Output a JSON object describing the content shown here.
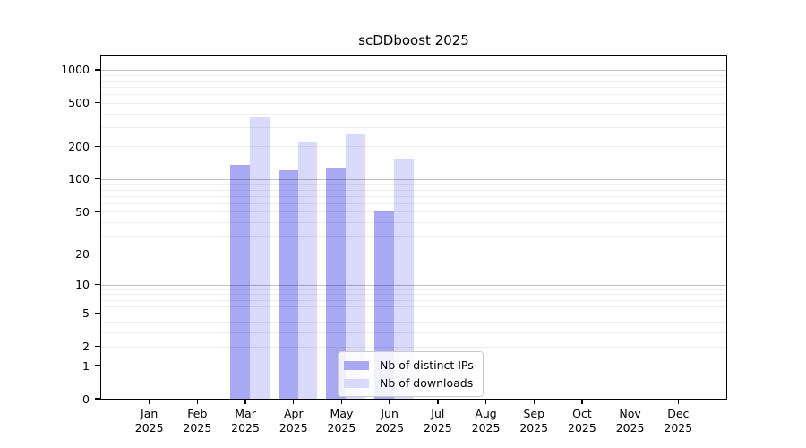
{
  "chart_data": {
    "type": "bar",
    "title": "scDDboost 2025",
    "categories": [
      "Jan 2025",
      "Feb 2025",
      "Mar 2025",
      "Apr 2025",
      "May 2025",
      "Jun 2025",
      "Jul 2025",
      "Aug 2025",
      "Sep 2025",
      "Oct 2025",
      "Nov 2025",
      "Dec 2025"
    ],
    "series": [
      {
        "name": "Nb of distinct IPs",
        "color": "#a8a8f4",
        "values": [
          134,
          120,
          127,
          51,
          0,
          0,
          0,
          0,
          0,
          0,
          0,
          0
        ]
      },
      {
        "name": "Nb of downloads",
        "color": "#d9d9fa",
        "values": [
          367,
          220,
          255,
          151,
          0,
          0,
          0,
          0,
          0,
          0,
          0,
          0
        ]
      }
    ],
    "xlabel": "",
    "ylabel": "",
    "yscale": "log1p",
    "ylim": [
      0,
      1350
    ],
    "yticks": [
      0,
      1,
      2,
      5,
      10,
      20,
      50,
      100,
      200,
      500,
      1000
    ],
    "grid": "on",
    "grid_major_at": [
      1,
      10,
      100,
      1000
    ],
    "legend_position": "inside-bottom-center"
  },
  "colors": {
    "bar_distinct_ips": "#a8a8f4",
    "bar_downloads": "#d9d9fa",
    "major_gridline": "#b9b9b9",
    "minor_gridline": "#ededed",
    "spine": "#000000",
    "legend_border": "#cbcbcb"
  }
}
